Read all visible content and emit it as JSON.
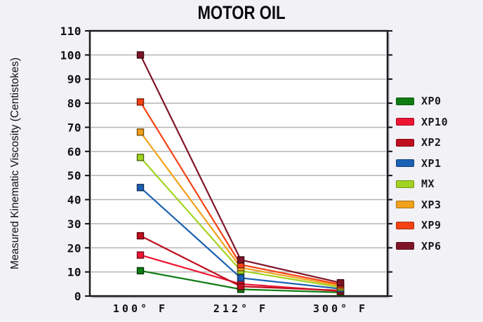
{
  "chart_data": {
    "type": "line",
    "title": "MOTOR OIL",
    "xlabel": "",
    "ylabel": "Measured Kinematic Viscosity (Centistokes)",
    "categories": [
      "100° F",
      "212° F",
      "300° F"
    ],
    "series": [
      {
        "name": "XP0",
        "color": "#0f7c12",
        "values": [
          10.5,
          2.8,
          1.5
        ]
      },
      {
        "name": "XP10",
        "color": "#ee1533",
        "values": [
          17,
          5,
          2
        ]
      },
      {
        "name": "XP2",
        "color": "#c00d1e",
        "values": [
          25,
          4,
          2.3
        ]
      },
      {
        "name": "XP1",
        "color": "#1a60b3",
        "values": [
          45,
          7.5,
          3
        ]
      },
      {
        "name": "MX",
        "color": "#a2d320",
        "values": [
          57.5,
          10.5,
          3.6
        ]
      },
      {
        "name": "XP3",
        "color": "#f2a11b",
        "values": [
          68,
          11.8,
          4.2
        ]
      },
      {
        "name": "XP9",
        "color": "#f64214",
        "values": [
          80.5,
          13,
          4.8
        ]
      },
      {
        "name": "XP6",
        "color": "#7e1427",
        "values": [
          100,
          15,
          5.5
        ]
      }
    ],
    "ylim": [
      0,
      110
    ],
    "ytick_step": 10,
    "grid": true,
    "legend_position": "right",
    "colors": {
      "background": "#f1f1f6",
      "plot_background": "#ffffff",
      "frame": "#1a1a1a",
      "gridline": "#b5b5b8",
      "text": "#111111"
    }
  }
}
